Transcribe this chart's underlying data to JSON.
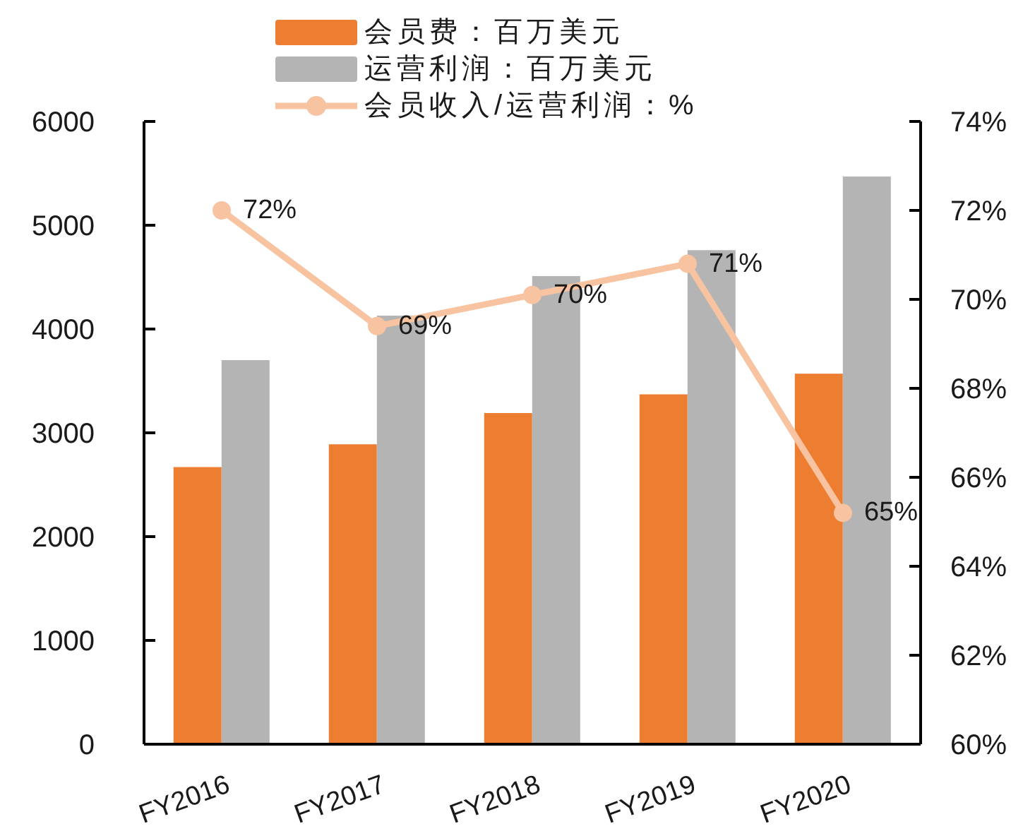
{
  "chart_data": {
    "type": "bar",
    "categories": [
      "FY2016",
      "FY2017",
      "FY2018",
      "FY2019",
      "FY2020"
    ],
    "series": [
      {
        "name": "会员费：百万美元",
        "color": "#ed7d31",
        "values": [
          2670,
          2890,
          3190,
          3370,
          3570
        ]
      },
      {
        "name": "运营利润：百万美元",
        "color": "#b4b4b4",
        "values": [
          3700,
          4130,
          4510,
          4760,
          5470
        ]
      },
      {
        "name": "会员收入/运营利润：%",
        "type": "line",
        "axis": "y2",
        "color": "#f7c3a0",
        "values": [
          72.0,
          69.4,
          70.1,
          70.8,
          65.2
        ],
        "value_labels": [
          "72%",
          "69%",
          "70%",
          "71%",
          "65%"
        ]
      }
    ],
    "ylim": [
      0,
      6000
    ],
    "yticks": [
      0,
      1000,
      2000,
      3000,
      4000,
      5000,
      6000
    ],
    "y2lim": [
      60,
      74
    ],
    "y2ticks": [
      {
        "value": 60,
        "label": "60%"
      },
      {
        "value": 62,
        "label": "62%"
      },
      {
        "value": 64,
        "label": "64%"
      },
      {
        "value": 66,
        "label": "66%"
      },
      {
        "value": 68,
        "label": "68%"
      },
      {
        "value": 70,
        "label": "70%"
      },
      {
        "value": 72,
        "label": "72%"
      },
      {
        "value": 74,
        "label": "74%"
      }
    ],
    "legend": "top",
    "marker": "circle"
  }
}
